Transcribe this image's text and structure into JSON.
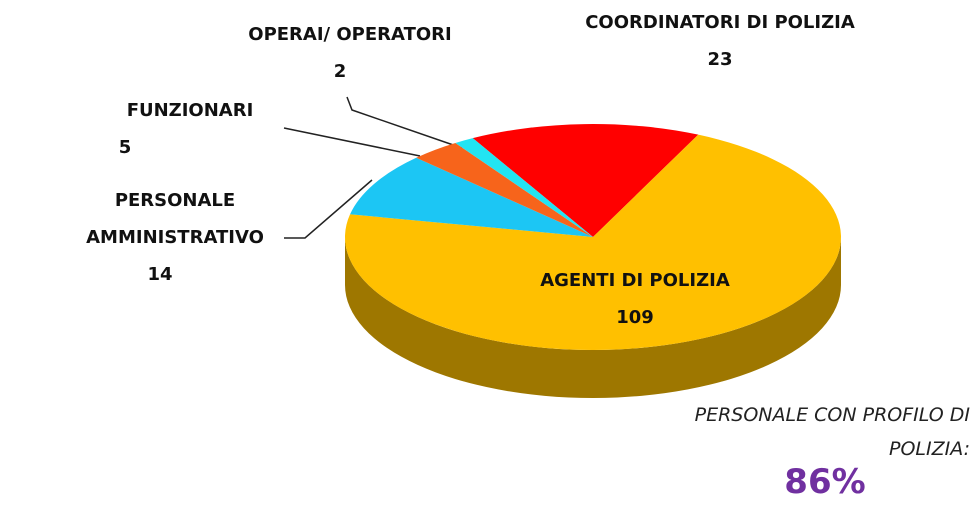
{
  "chart_data": {
    "type": "pie",
    "categories": [
      "COORDINATORI DI POLIZIA",
      "AGENTI DI POLIZIA",
      "PERSONALE AMMINISTRATIVO",
      "FUNZIONARI",
      "OPERAI/ OPERATORI"
    ],
    "values": [
      23,
      109,
      14,
      5,
      2
    ],
    "colors": [
      "#ff0000",
      "#ffc000",
      "#1cc6f4",
      "#f7641b",
      "#22e4f2"
    ],
    "annotation": {
      "text": "PERSONALE CON PROFILO DI POLIZIA:",
      "value": "86%"
    }
  }
}
